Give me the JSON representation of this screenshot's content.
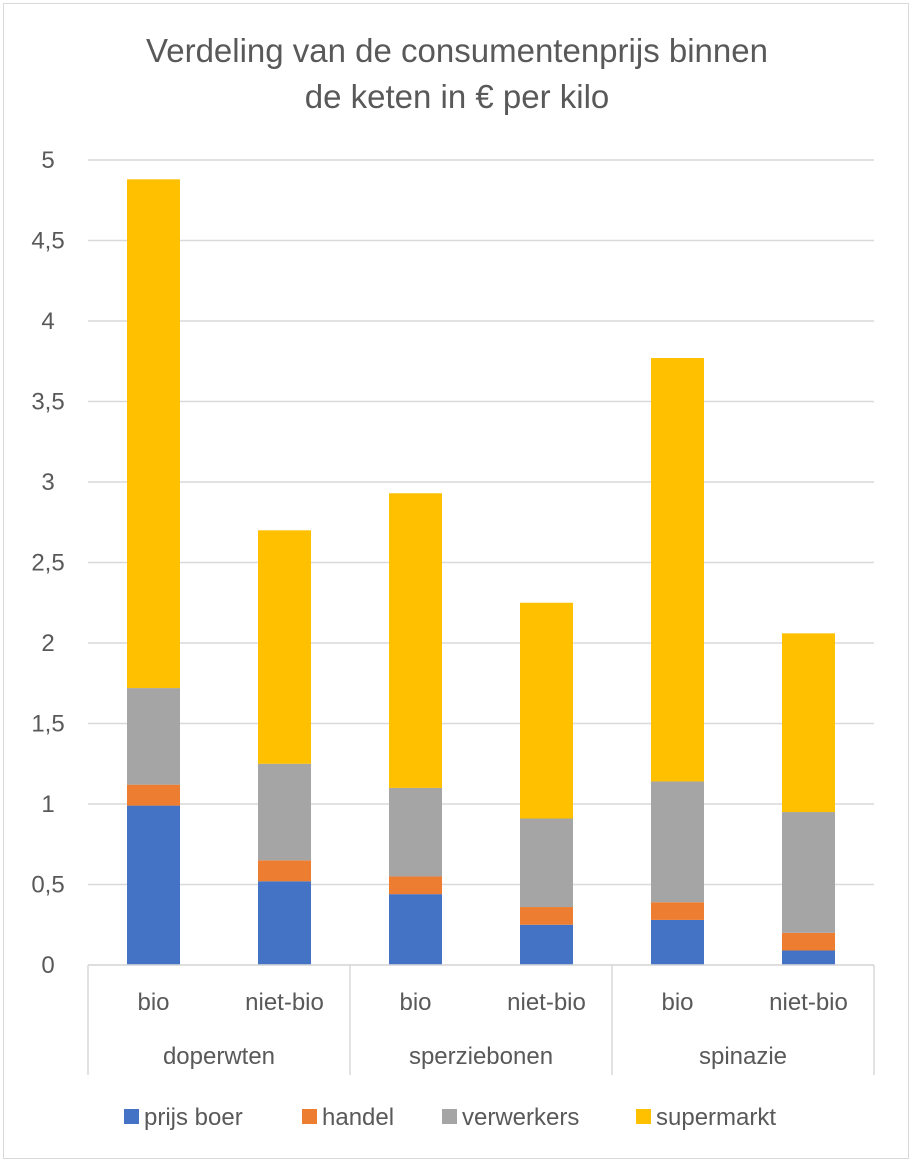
{
  "chart_data": {
    "type": "bar",
    "stacked": true,
    "title": "Verdeling van de consumentenprijs binnen de keten in € per kilo",
    "title_lines": [
      "Verdeling van de consumentenprijs binnen",
      "de keten in € per kilo"
    ],
    "ylim": [
      0,
      5
    ],
    "yticks": [
      0,
      0.5,
      1,
      1.5,
      2,
      2.5,
      3,
      3.5,
      4,
      4.5,
      5
    ],
    "ytick_labels": [
      "0",
      "0,5",
      "1",
      "1,5",
      "2",
      "2,5",
      "3",
      "3,5",
      "4",
      "4,5",
      "5"
    ],
    "grid": true,
    "legend_position": "bottom",
    "groups": [
      "doperwten",
      "sperziebonen",
      "spinazie"
    ],
    "categories": [
      "bio",
      "niet-bio",
      "bio",
      "niet-bio",
      "bio",
      "niet-bio"
    ],
    "series": [
      {
        "name": "prijs boer",
        "color": "#4472c4",
        "values": [
          0.99,
          0.52,
          0.44,
          0.25,
          0.28,
          0.09
        ]
      },
      {
        "name": "handel",
        "color": "#ed7d31",
        "values": [
          0.13,
          0.13,
          0.11,
          0.11,
          0.11,
          0.11
        ]
      },
      {
        "name": "verwerkers",
        "color": "#a5a5a5",
        "values": [
          0.6,
          0.6,
          0.55,
          0.55,
          0.75,
          0.75
        ]
      },
      {
        "name": "supermarkt",
        "color": "#ffc000",
        "values": [
          3.16,
          1.45,
          1.83,
          1.34,
          2.63,
          1.11
        ]
      }
    ],
    "colors": {
      "grid": "#d9d9d9",
      "text": "#595959",
      "axis": "#d9d9d9"
    }
  }
}
